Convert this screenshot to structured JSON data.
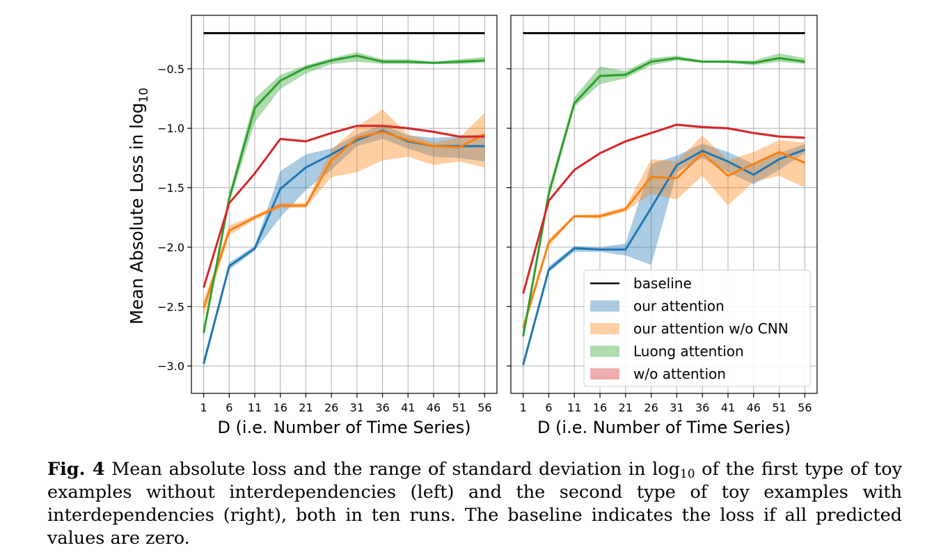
{
  "figure": {
    "ylabel_prefix": "Mean Absolute Loss in log",
    "ylabel_subscript": "10",
    "caption": {
      "label": "Fig. 4",
      "part1": " Mean absolute loss and the range of standard deviation in log",
      "sub": "10",
      "part2": " of the first type of toy examples without interdependencies (left) and the second type of toy examples with interdependencies (right), both in ten runs. The baseline indicates the loss if all predicted values are zero."
    }
  },
  "chart_data": [
    {
      "type": "line",
      "xlabel": "D (i.e. Number of Time Series)",
      "ylabel": "Mean Absolute Loss in log10",
      "x": [
        1,
        6,
        11,
        16,
        21,
        26,
        31,
        36,
        41,
        46,
        51,
        56
      ],
      "xticks": [
        "1",
        "6",
        "11",
        "16",
        "21",
        "26",
        "31",
        "36",
        "41",
        "46",
        "51",
        "56"
      ],
      "yticks": [
        "−3.0",
        "−2.5",
        "−2.0",
        "−1.5",
        "−1.0",
        "−0.5"
      ],
      "ylim": [
        -3.23,
        -0.05
      ],
      "grid": true,
      "series": [
        {
          "name": "baseline",
          "color": "#000000",
          "values": [
            -0.2,
            -0.2,
            -0.2,
            -0.2,
            -0.2,
            -0.2,
            -0.2,
            -0.2,
            -0.2,
            -0.2,
            -0.2,
            -0.2
          ]
        },
        {
          "name": "our attention",
          "color": "#1f77b4",
          "band": "#a4c8e4",
          "values": [
            -2.98,
            -2.16,
            -2.01,
            -1.51,
            -1.33,
            -1.22,
            -1.1,
            -1.02,
            -1.11,
            -1.15,
            -1.15,
            -1.15
          ],
          "lower": [
            -3.02,
            -2.19,
            -2.03,
            -1.75,
            -1.52,
            -1.35,
            -1.15,
            -1.09,
            -1.17,
            -1.24,
            -1.25,
            -1.28
          ],
          "upper": [
            -2.94,
            -2.13,
            -1.99,
            -1.36,
            -1.22,
            -1.17,
            -1.05,
            -0.97,
            -1.06,
            -1.08,
            -1.07,
            -1.05
          ]
        },
        {
          "name": "our attention w/o CNN",
          "color": "#ff7f0e",
          "band": "#ffc79a",
          "values": [
            -2.51,
            -1.86,
            -1.75,
            -1.65,
            -1.65,
            -1.27,
            -1.08,
            -1.03,
            -1.1,
            -1.15,
            -1.16,
            -1.05
          ],
          "lower": [
            -2.58,
            -1.9,
            -1.77,
            -1.67,
            -1.67,
            -1.41,
            -1.37,
            -1.27,
            -1.24,
            -1.31,
            -1.28,
            -1.33
          ],
          "upper": [
            -2.45,
            -1.82,
            -1.73,
            -1.63,
            -1.63,
            -1.18,
            -0.99,
            -0.84,
            -1.05,
            -1.12,
            -1.08,
            -0.87
          ]
        },
        {
          "name": "Luong attention",
          "color": "#2ca02c",
          "band": "#9fd39f",
          "values": [
            -2.72,
            -1.59,
            -0.83,
            -0.6,
            -0.49,
            -0.43,
            -0.39,
            -0.44,
            -0.44,
            -0.45,
            -0.44,
            -0.43
          ],
          "lower": [
            -2.76,
            -1.63,
            -0.95,
            -0.67,
            -0.54,
            -0.46,
            -0.44,
            -0.46,
            -0.46,
            -0.46,
            -0.46,
            -0.45
          ],
          "upper": [
            -2.68,
            -1.55,
            -0.75,
            -0.55,
            -0.47,
            -0.41,
            -0.36,
            -0.42,
            -0.42,
            -0.44,
            -0.42,
            -0.4
          ]
        },
        {
          "name": "w/o attention",
          "color": "#d62728",
          "band": "#f0a2a5",
          "values": [
            -2.34,
            -1.63,
            -1.38,
            -1.09,
            -1.11,
            -1.04,
            -0.98,
            -0.98,
            -1.0,
            -1.03,
            -1.07,
            -1.07
          ],
          "lower": [
            -2.35,
            -1.64,
            -1.39,
            -1.1,
            -1.12,
            -1.05,
            -0.99,
            -0.99,
            -1.01,
            -1.04,
            -1.08,
            -1.08
          ],
          "upper": [
            -2.33,
            -1.62,
            -1.37,
            -1.08,
            -1.1,
            -1.03,
            -0.97,
            -0.97,
            -0.99,
            -1.02,
            -1.06,
            -1.06
          ]
        }
      ]
    },
    {
      "type": "line",
      "xlabel": "D (i.e. Number of Time Series)",
      "x": [
        1,
        6,
        11,
        16,
        21,
        26,
        31,
        36,
        41,
        46,
        51,
        56
      ],
      "xticks": [
        "1",
        "6",
        "11",
        "16",
        "21",
        "26",
        "31",
        "36",
        "41",
        "46",
        "51",
        "56"
      ],
      "ylim": [
        -3.23,
        -0.05
      ],
      "grid": true,
      "legend": "lower-right",
      "series": [
        {
          "name": "baseline",
          "color": "#000000",
          "values": [
            -0.2,
            -0.2,
            -0.2,
            -0.2,
            -0.2,
            -0.2,
            -0.2,
            -0.2,
            -0.2,
            -0.2,
            -0.2,
            -0.2
          ]
        },
        {
          "name": "our attention",
          "color": "#1f77b4",
          "band": "#a4c8e4",
          "values": [
            -2.99,
            -2.19,
            -2.01,
            -2.02,
            -2.02,
            -1.67,
            -1.31,
            -1.19,
            -1.28,
            -1.39,
            -1.26,
            -1.18
          ],
          "lower": [
            -3.02,
            -2.21,
            -2.04,
            -2.04,
            -2.07,
            -2.15,
            -1.37,
            -1.25,
            -1.37,
            -1.47,
            -1.35,
            -1.21
          ],
          "upper": [
            -2.96,
            -2.16,
            -1.99,
            -2.0,
            -1.97,
            -1.3,
            -1.23,
            -1.13,
            -1.2,
            -1.3,
            -1.21,
            -1.13
          ]
        },
        {
          "name": "our attention w/o CNN",
          "color": "#ff7f0e",
          "band": "#ffc79a",
          "values": [
            -2.68,
            -1.96,
            -1.74,
            -1.74,
            -1.68,
            -1.41,
            -1.42,
            -1.21,
            -1.4,
            -1.3,
            -1.2,
            -1.29
          ],
          "lower": [
            -2.72,
            -1.99,
            -1.75,
            -1.76,
            -1.7,
            -1.55,
            -1.6,
            -1.4,
            -1.65,
            -1.45,
            -1.4,
            -1.5
          ],
          "upper": [
            -2.64,
            -1.93,
            -1.73,
            -1.72,
            -1.66,
            -1.26,
            -1.28,
            -1.06,
            -1.27,
            -1.2,
            -1.1,
            -1.12
          ]
        },
        {
          "name": "Luong attention",
          "color": "#2ca02c",
          "band": "#9fd39f",
          "values": [
            -2.75,
            -1.55,
            -0.79,
            -0.56,
            -0.55,
            -0.44,
            -0.41,
            -0.44,
            -0.44,
            -0.45,
            -0.41,
            -0.44
          ],
          "lower": [
            -2.79,
            -1.6,
            -0.82,
            -0.63,
            -0.58,
            -0.47,
            -0.43,
            -0.45,
            -0.45,
            -0.47,
            -0.44,
            -0.46
          ],
          "upper": [
            -2.71,
            -1.5,
            -0.74,
            -0.48,
            -0.52,
            -0.41,
            -0.39,
            -0.43,
            -0.43,
            -0.43,
            -0.37,
            -0.41
          ]
        },
        {
          "name": "w/o attention",
          "color": "#d62728",
          "band": "#f0a2a5",
          "values": [
            -2.39,
            -1.61,
            -1.35,
            -1.21,
            -1.11,
            -1.04,
            -0.97,
            -0.99,
            -1.0,
            -1.04,
            -1.07,
            -1.08
          ],
          "lower": [
            -2.4,
            -1.62,
            -1.36,
            -1.22,
            -1.12,
            -1.05,
            -0.98,
            -1.0,
            -1.01,
            -1.05,
            -1.08,
            -1.09
          ],
          "upper": [
            -2.38,
            -1.6,
            -1.34,
            -1.2,
            -1.1,
            -1.03,
            -0.96,
            -0.98,
            -0.99,
            -1.03,
            -1.06,
            -1.07
          ]
        }
      ]
    }
  ]
}
